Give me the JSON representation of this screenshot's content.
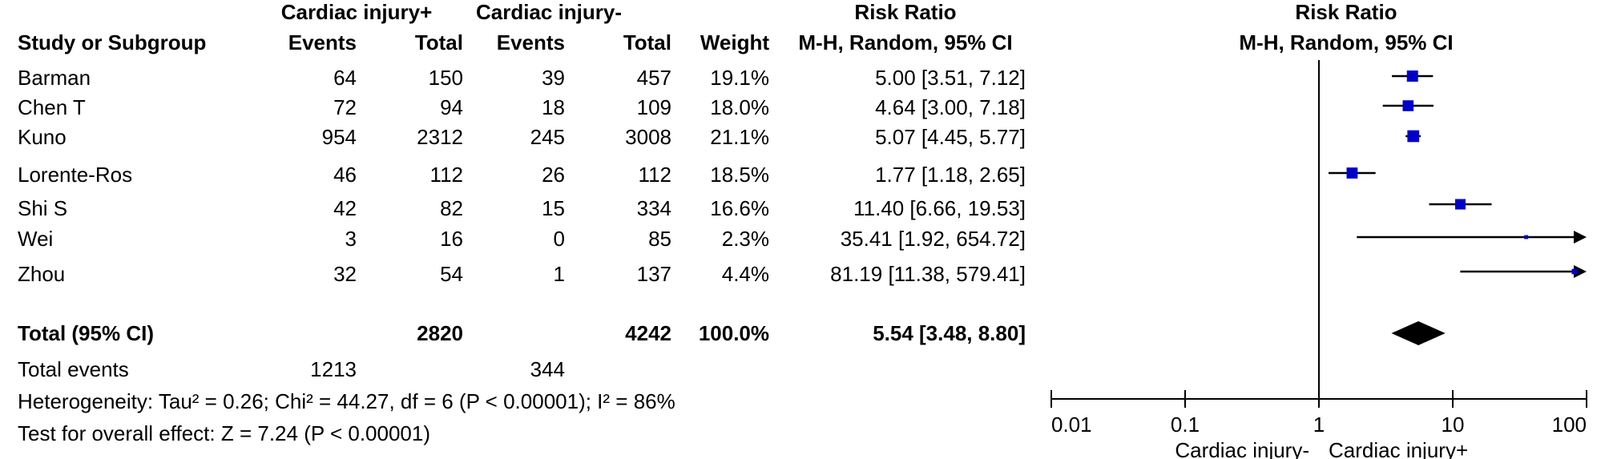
{
  "headers": {
    "group1": "Cardiac injury+",
    "group2": "Cardiac injury-",
    "risk_ratio": "Risk Ratio",
    "plot_title": "Risk Ratio",
    "study": "Study or Subgroup",
    "events": "Events",
    "total": "Total",
    "weight": "Weight",
    "method": "M-H, Random, 95% CI",
    "plot_method": "M-H, Random, 95% CI"
  },
  "studies": [
    {
      "name": "Barman",
      "e1": "64",
      "t1": "150",
      "e2": "39",
      "t2": "457",
      "weight": "19.1%",
      "ci": "5.00 [3.51, 7.12]"
    },
    {
      "name": "Chen T",
      "e1": "72",
      "t1": "94",
      "e2": "18",
      "t2": "109",
      "weight": "18.0%",
      "ci": "4.64 [3.00, 7.18]"
    },
    {
      "name": "Kuno",
      "e1": "954",
      "t1": "2312",
      "e2": "245",
      "t2": "3008",
      "weight": "21.1%",
      "ci": "5.07 [4.45, 5.77]"
    },
    {
      "name": "Lorente-Ros",
      "e1": "46",
      "t1": "112",
      "e2": "26",
      "t2": "112",
      "weight": "18.5%",
      "ci": "1.77 [1.18, 2.65]"
    },
    {
      "name": "Shi S",
      "e1": "42",
      "t1": "82",
      "e2": "15",
      "t2": "334",
      "weight": "16.6%",
      "ci": "11.40 [6.66, 19.53]"
    },
    {
      "name": "Wei",
      "e1": "3",
      "t1": "16",
      "e2": "0",
      "t2": "85",
      "weight": "2.3%",
      "ci": "35.41 [1.92, 654.72]"
    },
    {
      "name": "Zhou",
      "e1": "32",
      "t1": "54",
      "e2": "1",
      "t2": "137",
      "weight": "4.4%",
      "ci": "81.19 [11.38, 579.41]"
    }
  ],
  "total": {
    "label": "Total (95% CI)",
    "t1": "2820",
    "t2": "4242",
    "weight": "100.0%",
    "ci": "5.54 [3.48, 8.80]"
  },
  "total_events": {
    "label": "Total events",
    "e1": "1213",
    "e2": "344"
  },
  "heterogeneity": "Heterogeneity: Tau² = 0.26; Chi² = 44.27, df = 6 (P < 0.00001); I² = 86%",
  "overall_effect": "Test for overall effect: Z = 7.24 (P < 0.00001)",
  "chart_data": {
    "type": "forest",
    "scale": "log",
    "xlim": [
      0.01,
      100
    ],
    "ticks": [
      {
        "value": 0.01,
        "label": "0.01"
      },
      {
        "value": 0.1,
        "label": "0.1"
      },
      {
        "value": 1,
        "label": "1"
      },
      {
        "value": 10,
        "label": "10"
      },
      {
        "value": 100,
        "label": "100"
      }
    ],
    "favours_left": "Cardiac injury-",
    "favours_right": "Cardiac injury+",
    "studies": [
      {
        "rr": 5.0,
        "lo": 3.51,
        "hi": 7.12,
        "weight": 19.1
      },
      {
        "rr": 4.64,
        "lo": 3.0,
        "hi": 7.18,
        "weight": 18.0
      },
      {
        "rr": 5.07,
        "lo": 4.45,
        "hi": 5.77,
        "weight": 21.1
      },
      {
        "rr": 1.77,
        "lo": 1.18,
        "hi": 2.65,
        "weight": 18.5
      },
      {
        "rr": 11.4,
        "lo": 6.66,
        "hi": 19.53,
        "weight": 16.6
      },
      {
        "rr": 35.41,
        "lo": 1.92,
        "hi": 654.72,
        "weight": 2.3
      },
      {
        "rr": 81.19,
        "lo": 11.38,
        "hi": 579.41,
        "weight": 4.4
      }
    ],
    "pooled": {
      "rr": 5.54,
      "lo": 3.48,
      "hi": 8.8
    },
    "colors": {
      "marker": "#0000c8",
      "line": "#000000",
      "diamond": "#000000"
    }
  }
}
